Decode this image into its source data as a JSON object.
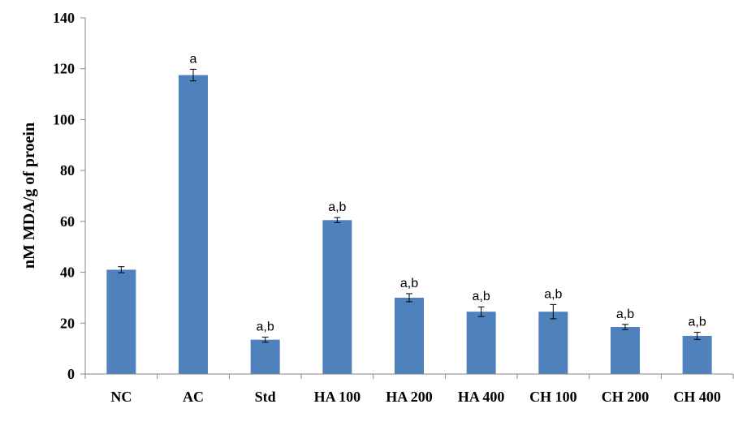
{
  "chart_data": {
    "type": "bar",
    "categories": [
      "NC",
      "AC",
      "Std",
      "HA 100",
      "HA 200",
      "HA 400",
      "CH 100",
      "CH 200",
      "CH 400"
    ],
    "values": [
      41,
      117.5,
      13.5,
      60.5,
      30,
      24.5,
      24.5,
      18.5,
      15
    ],
    "errors": [
      1.2,
      2.3,
      1.0,
      1.0,
      1.6,
      1.9,
      2.8,
      1.0,
      1.4
    ],
    "annotations": [
      "",
      "a",
      "a,b",
      "a,b",
      "a,b",
      "a,b",
      "a,b",
      "a,b",
      "a,b"
    ],
    "title": "",
    "xlabel": "",
    "ylabel": "nM  MDA/g of proein",
    "ylim": [
      0,
      140
    ],
    "yticks": [
      0,
      20,
      40,
      60,
      80,
      100,
      120,
      140
    ],
    "grid": false,
    "legend": "none",
    "bar_color": "#4f81bd"
  }
}
